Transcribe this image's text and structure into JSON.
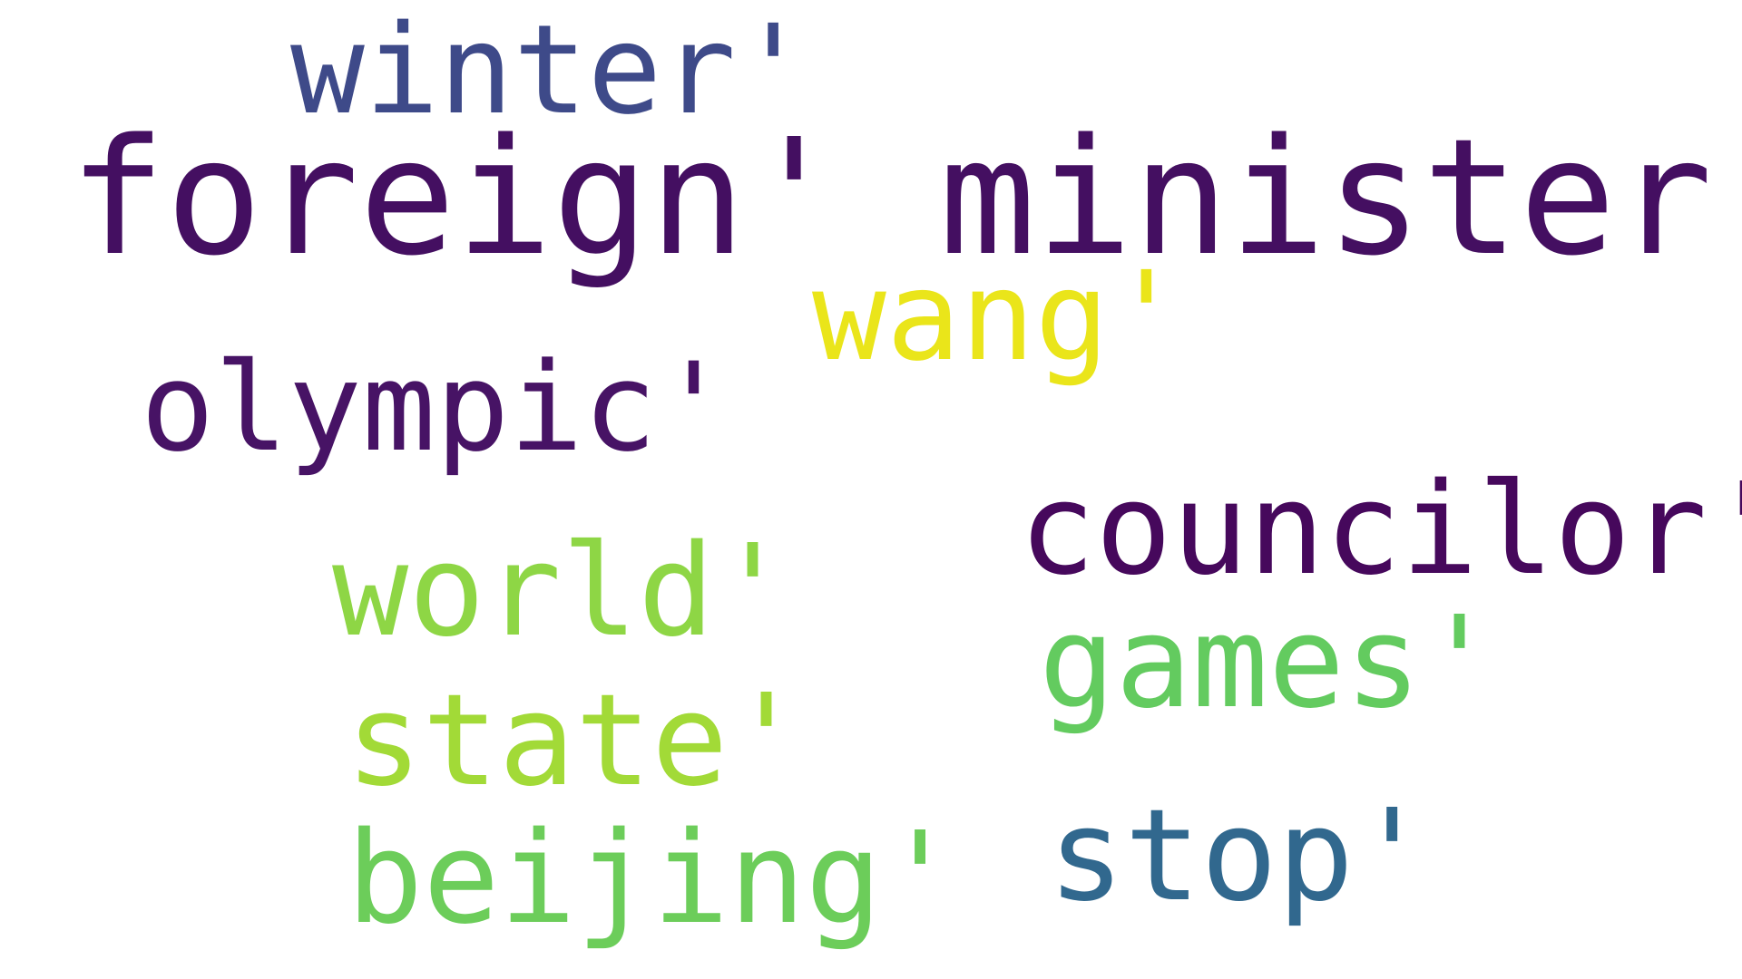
{
  "words": {
    "winter": "winter'",
    "foreign_minister": "foreign' minister'",
    "wang": "wang'",
    "olympic": "olympic'",
    "councilor": "councilor'",
    "world": "world'",
    "games": "games'",
    "state": "state'",
    "beijing": "beijing'",
    "stop": "stop'"
  },
  "colors": {
    "background": "#ffffff",
    "dark_purple": "#440f61",
    "indigo": "#3e4a89",
    "teal_blue": "#31688e",
    "green": "#63cb5f",
    "light_green": "#8ed645",
    "lime": "#a2da37",
    "yellow": "#eae51a"
  }
}
